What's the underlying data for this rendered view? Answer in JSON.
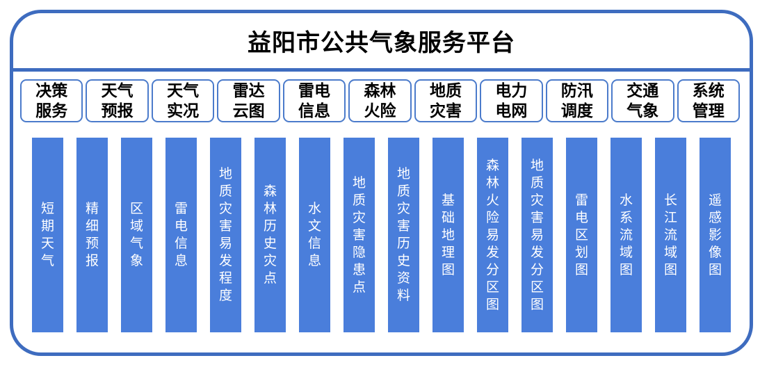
{
  "title": "益阳市公共气象服务平台",
  "colors": {
    "frame_border": "#3E6CBF",
    "divider": "#3E6CBF",
    "tab_border": "#4B7BCB",
    "tab_background": "#FFFFFF",
    "tab_text": "#000000",
    "title_text": "#000000",
    "bar_fill": "#4A7EDB",
    "bar_text": "#FFFFFF"
  },
  "menu_tabs": [
    {
      "label": "决策服务"
    },
    {
      "label": "天气预报"
    },
    {
      "label": "天气实况"
    },
    {
      "label": "雷达云图"
    },
    {
      "label": "雷电信息"
    },
    {
      "label": "森林火险"
    },
    {
      "label": "地质灾害"
    },
    {
      "label": "电力电网"
    },
    {
      "label": "防汛调度"
    },
    {
      "label": "交通气象"
    },
    {
      "label": "系统管理"
    }
  ],
  "content_bars": [
    {
      "label": "短期天气"
    },
    {
      "label": "精细预报"
    },
    {
      "label": "区域气象"
    },
    {
      "label": "雷电信息"
    },
    {
      "label": "地质灾害易发程度"
    },
    {
      "label": "森林历史灾点"
    },
    {
      "label": "水文信息"
    },
    {
      "label": "地质灾害隐患点"
    },
    {
      "label": "地质灾害历史资料"
    },
    {
      "label": "基础地理图"
    },
    {
      "label": "森林火险易发分区图"
    },
    {
      "label": "地质灾害易发分区图"
    },
    {
      "label": "雷电区划图"
    },
    {
      "label": "水系流域图"
    },
    {
      "label": "长江流域图"
    },
    {
      "label": "遥感影像图"
    }
  ]
}
